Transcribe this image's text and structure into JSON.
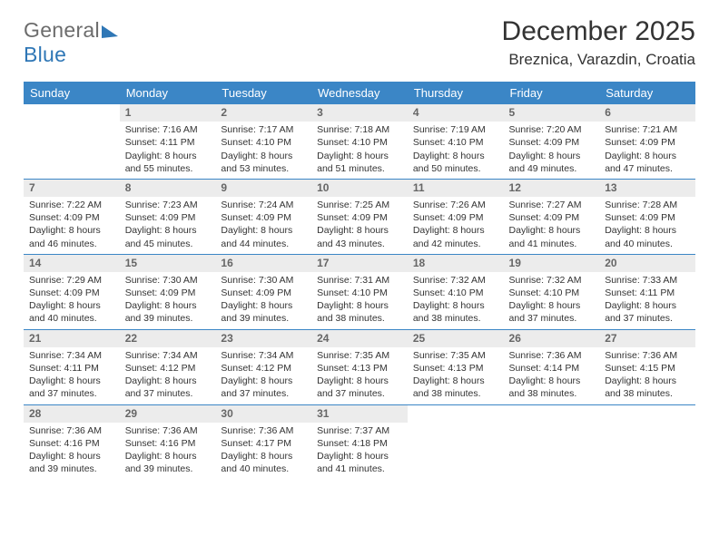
{
  "brand": {
    "general": "General",
    "blue": "Blue"
  },
  "title": "December 2025",
  "location": "Breznica, Varazdin, Croatia",
  "colors": {
    "header_bg": "#3b86c6",
    "header_fg": "#ffffff",
    "daynum_bg": "#ececec",
    "daynum_fg": "#666666",
    "rule": "#3b86c6",
    "text": "#333333",
    "logo_gray": "#6c6c6c",
    "logo_blue": "#2f77b6"
  },
  "daynames": [
    "Sunday",
    "Monday",
    "Tuesday",
    "Wednesday",
    "Thursday",
    "Friday",
    "Saturday"
  ],
  "weeks": [
    [
      {
        "n": "",
        "lines": []
      },
      {
        "n": "1",
        "lines": [
          "Sunrise: 7:16 AM",
          "Sunset: 4:11 PM",
          "Daylight: 8 hours",
          "and 55 minutes."
        ]
      },
      {
        "n": "2",
        "lines": [
          "Sunrise: 7:17 AM",
          "Sunset: 4:10 PM",
          "Daylight: 8 hours",
          "and 53 minutes."
        ]
      },
      {
        "n": "3",
        "lines": [
          "Sunrise: 7:18 AM",
          "Sunset: 4:10 PM",
          "Daylight: 8 hours",
          "and 51 minutes."
        ]
      },
      {
        "n": "4",
        "lines": [
          "Sunrise: 7:19 AM",
          "Sunset: 4:10 PM",
          "Daylight: 8 hours",
          "and 50 minutes."
        ]
      },
      {
        "n": "5",
        "lines": [
          "Sunrise: 7:20 AM",
          "Sunset: 4:09 PM",
          "Daylight: 8 hours",
          "and 49 minutes."
        ]
      },
      {
        "n": "6",
        "lines": [
          "Sunrise: 7:21 AM",
          "Sunset: 4:09 PM",
          "Daylight: 8 hours",
          "and 47 minutes."
        ]
      }
    ],
    [
      {
        "n": "7",
        "lines": [
          "Sunrise: 7:22 AM",
          "Sunset: 4:09 PM",
          "Daylight: 8 hours",
          "and 46 minutes."
        ]
      },
      {
        "n": "8",
        "lines": [
          "Sunrise: 7:23 AM",
          "Sunset: 4:09 PM",
          "Daylight: 8 hours",
          "and 45 minutes."
        ]
      },
      {
        "n": "9",
        "lines": [
          "Sunrise: 7:24 AM",
          "Sunset: 4:09 PM",
          "Daylight: 8 hours",
          "and 44 minutes."
        ]
      },
      {
        "n": "10",
        "lines": [
          "Sunrise: 7:25 AM",
          "Sunset: 4:09 PM",
          "Daylight: 8 hours",
          "and 43 minutes."
        ]
      },
      {
        "n": "11",
        "lines": [
          "Sunrise: 7:26 AM",
          "Sunset: 4:09 PM",
          "Daylight: 8 hours",
          "and 42 minutes."
        ]
      },
      {
        "n": "12",
        "lines": [
          "Sunrise: 7:27 AM",
          "Sunset: 4:09 PM",
          "Daylight: 8 hours",
          "and 41 minutes."
        ]
      },
      {
        "n": "13",
        "lines": [
          "Sunrise: 7:28 AM",
          "Sunset: 4:09 PM",
          "Daylight: 8 hours",
          "and 40 minutes."
        ]
      }
    ],
    [
      {
        "n": "14",
        "lines": [
          "Sunrise: 7:29 AM",
          "Sunset: 4:09 PM",
          "Daylight: 8 hours",
          "and 40 minutes."
        ]
      },
      {
        "n": "15",
        "lines": [
          "Sunrise: 7:30 AM",
          "Sunset: 4:09 PM",
          "Daylight: 8 hours",
          "and 39 minutes."
        ]
      },
      {
        "n": "16",
        "lines": [
          "Sunrise: 7:30 AM",
          "Sunset: 4:09 PM",
          "Daylight: 8 hours",
          "and 39 minutes."
        ]
      },
      {
        "n": "17",
        "lines": [
          "Sunrise: 7:31 AM",
          "Sunset: 4:10 PM",
          "Daylight: 8 hours",
          "and 38 minutes."
        ]
      },
      {
        "n": "18",
        "lines": [
          "Sunrise: 7:32 AM",
          "Sunset: 4:10 PM",
          "Daylight: 8 hours",
          "and 38 minutes."
        ]
      },
      {
        "n": "19",
        "lines": [
          "Sunrise: 7:32 AM",
          "Sunset: 4:10 PM",
          "Daylight: 8 hours",
          "and 37 minutes."
        ]
      },
      {
        "n": "20",
        "lines": [
          "Sunrise: 7:33 AM",
          "Sunset: 4:11 PM",
          "Daylight: 8 hours",
          "and 37 minutes."
        ]
      }
    ],
    [
      {
        "n": "21",
        "lines": [
          "Sunrise: 7:34 AM",
          "Sunset: 4:11 PM",
          "Daylight: 8 hours",
          "and 37 minutes."
        ]
      },
      {
        "n": "22",
        "lines": [
          "Sunrise: 7:34 AM",
          "Sunset: 4:12 PM",
          "Daylight: 8 hours",
          "and 37 minutes."
        ]
      },
      {
        "n": "23",
        "lines": [
          "Sunrise: 7:34 AM",
          "Sunset: 4:12 PM",
          "Daylight: 8 hours",
          "and 37 minutes."
        ]
      },
      {
        "n": "24",
        "lines": [
          "Sunrise: 7:35 AM",
          "Sunset: 4:13 PM",
          "Daylight: 8 hours",
          "and 37 minutes."
        ]
      },
      {
        "n": "25",
        "lines": [
          "Sunrise: 7:35 AM",
          "Sunset: 4:13 PM",
          "Daylight: 8 hours",
          "and 38 minutes."
        ]
      },
      {
        "n": "26",
        "lines": [
          "Sunrise: 7:36 AM",
          "Sunset: 4:14 PM",
          "Daylight: 8 hours",
          "and 38 minutes."
        ]
      },
      {
        "n": "27",
        "lines": [
          "Sunrise: 7:36 AM",
          "Sunset: 4:15 PM",
          "Daylight: 8 hours",
          "and 38 minutes."
        ]
      }
    ],
    [
      {
        "n": "28",
        "lines": [
          "Sunrise: 7:36 AM",
          "Sunset: 4:16 PM",
          "Daylight: 8 hours",
          "and 39 minutes."
        ]
      },
      {
        "n": "29",
        "lines": [
          "Sunrise: 7:36 AM",
          "Sunset: 4:16 PM",
          "Daylight: 8 hours",
          "and 39 minutes."
        ]
      },
      {
        "n": "30",
        "lines": [
          "Sunrise: 7:36 AM",
          "Sunset: 4:17 PM",
          "Daylight: 8 hours",
          "and 40 minutes."
        ]
      },
      {
        "n": "31",
        "lines": [
          "Sunrise: 7:37 AM",
          "Sunset: 4:18 PM",
          "Daylight: 8 hours",
          "and 41 minutes."
        ]
      },
      {
        "n": "",
        "lines": []
      },
      {
        "n": "",
        "lines": []
      },
      {
        "n": "",
        "lines": []
      }
    ]
  ]
}
